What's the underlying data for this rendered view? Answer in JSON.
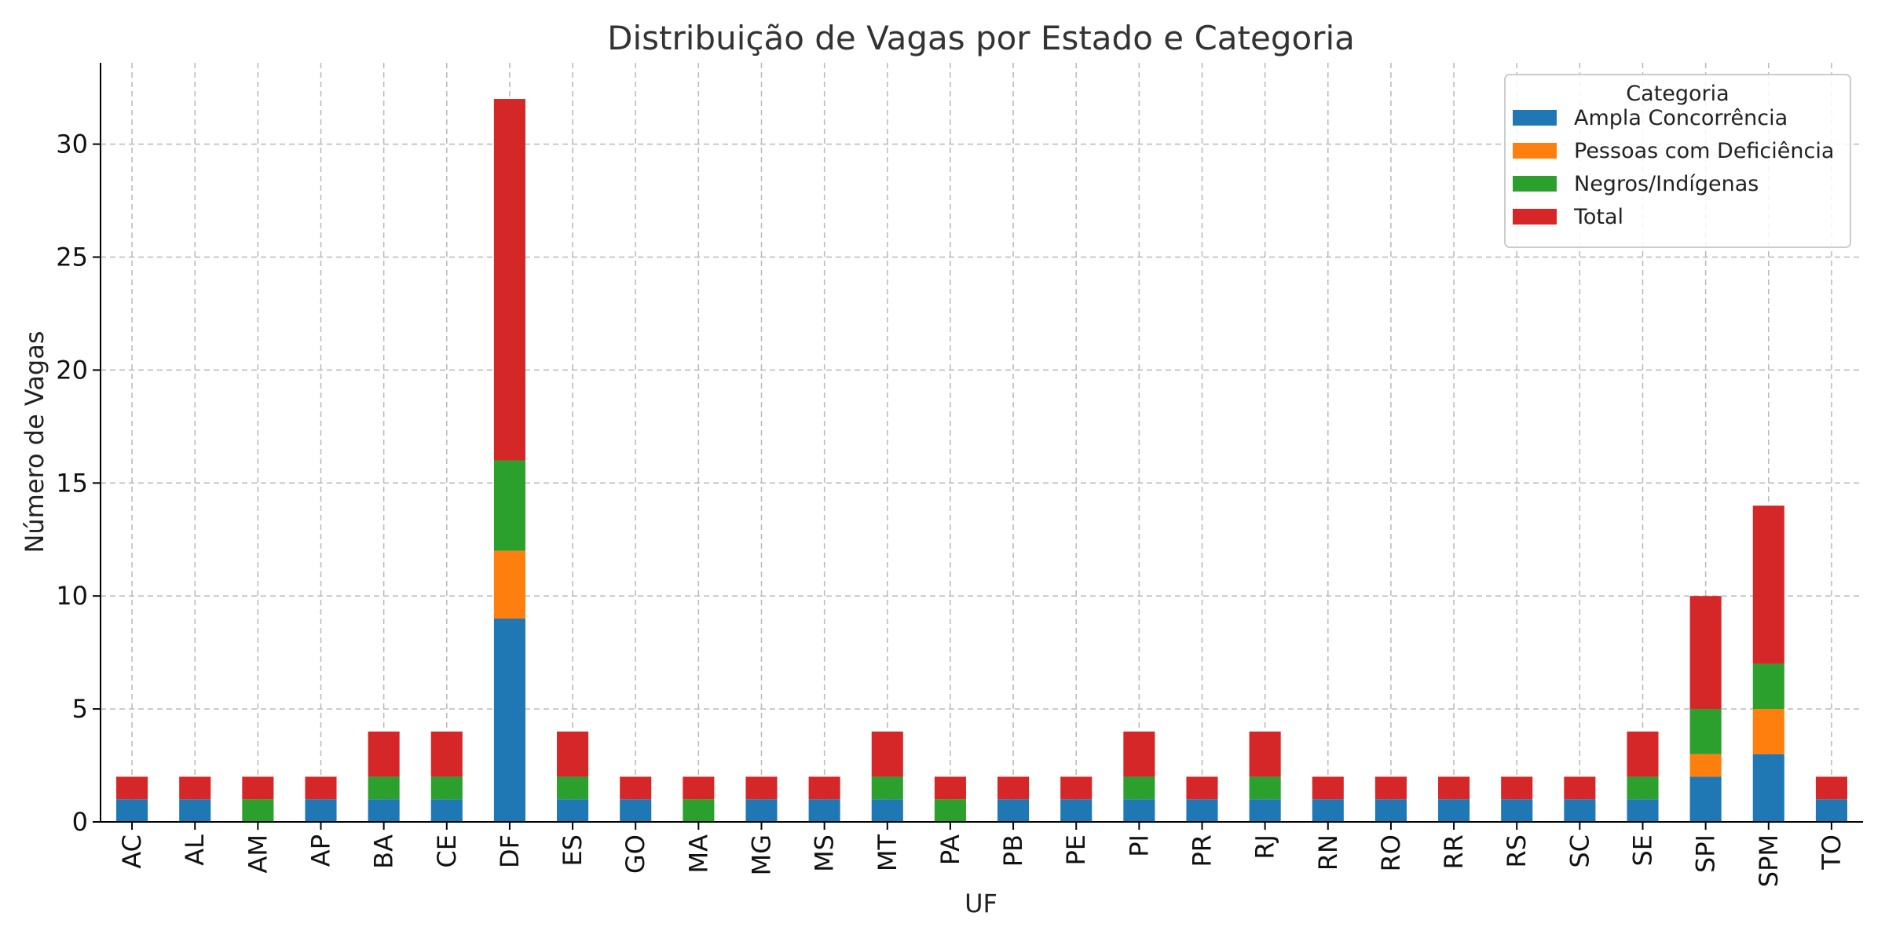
{
  "chart_data": {
    "type": "bar",
    "stacked": true,
    "title": "Distribuição de Vagas por Estado e Categoria",
    "xlabel": "UF",
    "ylabel": "Número de Vagas",
    "ylim": [
      0,
      33.6
    ],
    "yticks": [
      0,
      5,
      10,
      15,
      20,
      25,
      30
    ],
    "grid": true,
    "legend": {
      "title": "Categoria",
      "placement": "top-right"
    },
    "categories": [
      "AC",
      "AL",
      "AM",
      "AP",
      "BA",
      "CE",
      "DF",
      "ES",
      "GO",
      "MA",
      "MG",
      "MS",
      "MT",
      "PA",
      "PB",
      "PE",
      "PI",
      "PR",
      "RJ",
      "RN",
      "RO",
      "RR",
      "RS",
      "SC",
      "SE",
      "SPI",
      "SPM",
      "TO"
    ],
    "series": [
      {
        "name": "Ampla Concorrência",
        "color": "#1f77b4",
        "values": [
          1,
          1,
          0,
          1,
          1,
          1,
          9,
          1,
          1,
          0,
          1,
          1,
          1,
          0,
          1,
          1,
          1,
          1,
          1,
          1,
          1,
          1,
          1,
          1,
          1,
          2,
          3,
          1
        ]
      },
      {
        "name": "Pessoas com Deficiência",
        "color": "#ff7f0e",
        "values": [
          0,
          0,
          0,
          0,
          0,
          0,
          3,
          0,
          0,
          0,
          0,
          0,
          0,
          0,
          0,
          0,
          0,
          0,
          0,
          0,
          0,
          0,
          0,
          0,
          0,
          1,
          2,
          0
        ]
      },
      {
        "name": "Negros/Indígenas",
        "color": "#2ca02c",
        "values": [
          0,
          0,
          1,
          0,
          1,
          1,
          4,
          1,
          0,
          1,
          0,
          0,
          1,
          1,
          0,
          0,
          1,
          0,
          1,
          0,
          0,
          0,
          0,
          0,
          1,
          2,
          2,
          0
        ]
      },
      {
        "name": "Total",
        "color": "#d62728",
        "values": [
          1,
          1,
          1,
          1,
          2,
          2,
          16,
          2,
          1,
          1,
          1,
          1,
          2,
          1,
          1,
          1,
          2,
          1,
          2,
          1,
          1,
          1,
          1,
          1,
          2,
          5,
          7,
          1
        ]
      }
    ]
  }
}
